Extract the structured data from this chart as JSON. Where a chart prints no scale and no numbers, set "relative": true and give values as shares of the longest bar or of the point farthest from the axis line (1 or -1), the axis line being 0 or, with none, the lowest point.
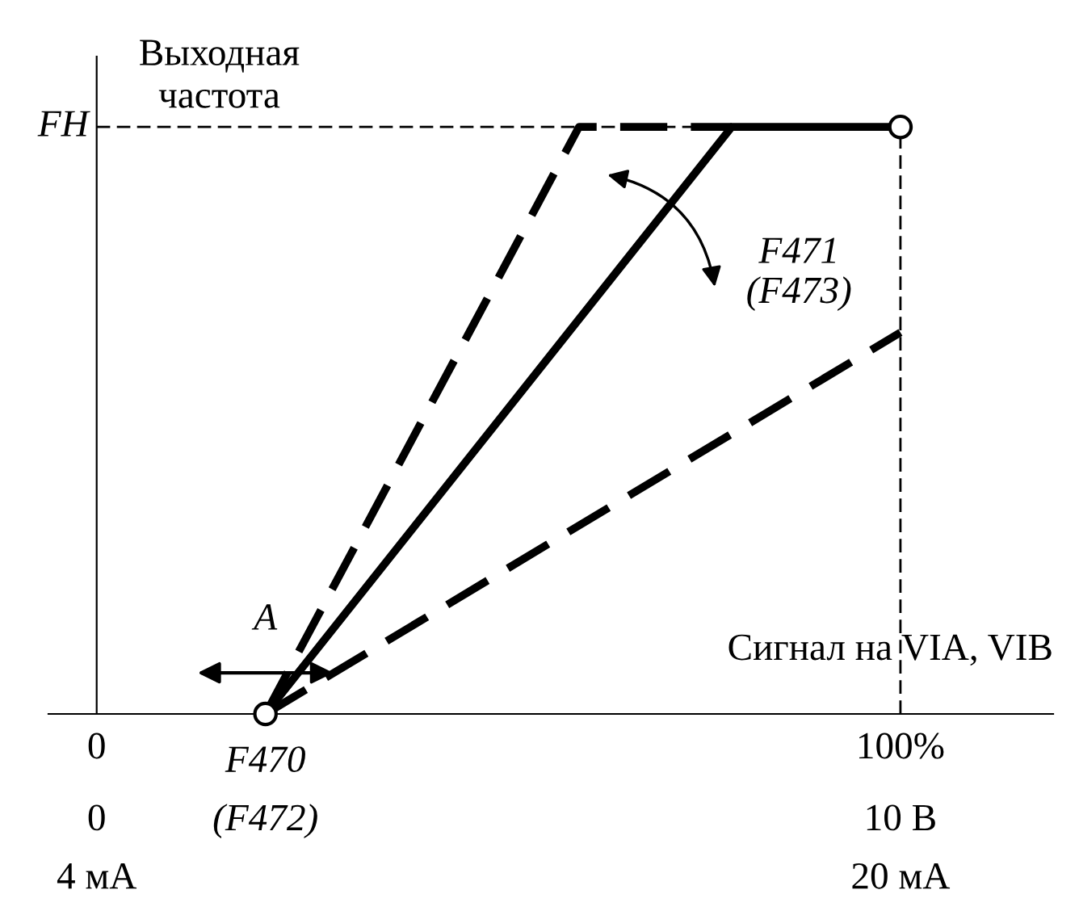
{
  "chart_data": {
    "type": "line",
    "relative": true,
    "xlabel": "Сигнал на VIA, VIB",
    "ylabel": "Выходная\nчастота",
    "xlim": [
      -6,
      119
    ],
    "xticks": [
      0,
      {
        "value": 100,
        "label": "100%"
      }
    ],
    "tick_labels": "x",
    "grid": false,
    "series": [
      {
        "x": [
          21,
          79,
          100
        ],
        "values": [
          0,
          1,
          1
        ],
        "color": "#000000",
        "line_style": "solid"
      },
      {
        "x": [
          21,
          60,
          79
        ],
        "values": [
          0,
          1,
          1
        ],
        "color": "#000000",
        "line_style": "dashed"
      },
      {
        "x": [
          21,
          100
        ],
        "values": [
          0,
          0.65
        ],
        "color": "#000000",
        "line_style": "dashed"
      },
      {
        "type": "scatter",
        "x": [
          21,
          100
        ],
        "values": [
          0,
          1
        ],
        "color": "#000000",
        "marker": "circle"
      }
    ],
    "ref_lines": [
      {
        "axis": "y",
        "value": 1,
        "label": "FH",
        "line_style": "dashed",
        "color": "#000000"
      },
      {
        "axis": "x",
        "value": 100,
        "line_style": "dashed",
        "color": "#000000"
      }
    ],
    "annotations": [
      "F470\n(F472)",
      "A",
      "F471\n(F473)",
      "0\n4 мА",
      "10 В\n20 мА"
    ]
  }
}
